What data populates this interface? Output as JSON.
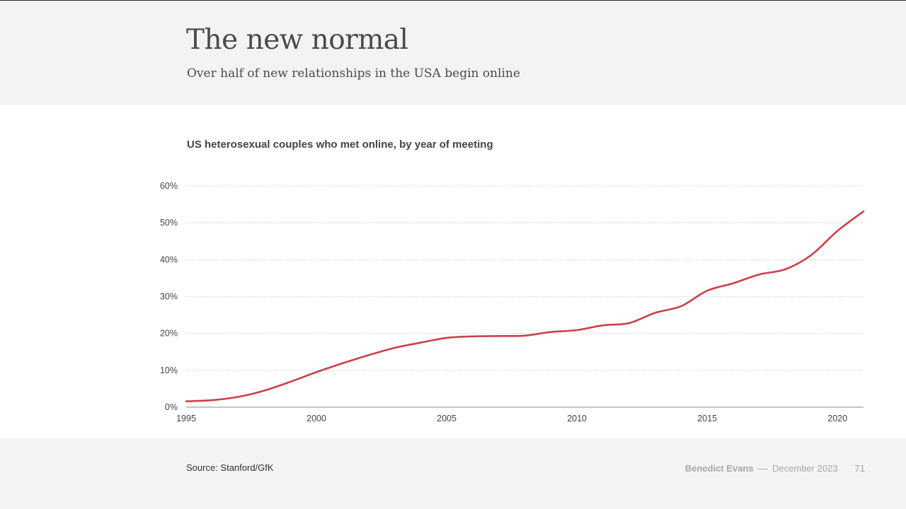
{
  "header": {
    "title": "The new normal",
    "subtitle": "Over half of new relationships in the USA begin online"
  },
  "footer": {
    "source": "Source: Stanford/GfK",
    "author": "Benedict Evans",
    "separator": "––",
    "date": "December 2023",
    "page": "71"
  },
  "chart_data": {
    "type": "line",
    "title": "US heterosexual couples who met online, by year of meeting",
    "xlabel": "",
    "ylabel": "",
    "xlim": [
      1995,
      2021
    ],
    "ylim": [
      0,
      60
    ],
    "x_ticks": [
      1995,
      2000,
      2005,
      2010,
      2015,
      2020
    ],
    "y_ticks": [
      0,
      10,
      20,
      30,
      40,
      50,
      60
    ],
    "y_tick_labels": [
      "0%",
      "10%",
      "20%",
      "30%",
      "40%",
      "50%",
      "60%"
    ],
    "grid": true,
    "color": "#c9404b",
    "series": [
      {
        "name": "Met online",
        "x": [
          1995,
          1996,
          1997,
          1998,
          1999,
          2000,
          2001,
          2002,
          2003,
          2004,
          2005,
          2006,
          2007,
          2008,
          2009,
          2010,
          2011,
          2012,
          2013,
          2014,
          2015,
          2016,
          2017,
          2018,
          2019,
          2020,
          2021
        ],
        "values": [
          1.6,
          1.9,
          2.8,
          4.5,
          6.9,
          9.5,
          11.9,
          14.1,
          16.1,
          17.5,
          18.8,
          19.2,
          19.3,
          19.4,
          20.4,
          20.9,
          22.2,
          22.8,
          25.6,
          27.4,
          31.6,
          33.6,
          36.0,
          37.4,
          41.3,
          47.8,
          53.1
        ]
      }
    ]
  }
}
